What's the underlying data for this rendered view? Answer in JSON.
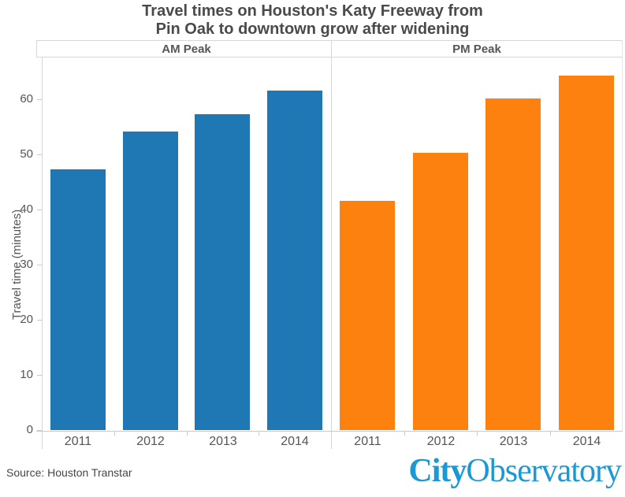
{
  "title": {
    "line1": "Travel times on Houston's Katy Freeway from",
    "line2": "Pin Oak to downtown grow after widening"
  },
  "chart_data": {
    "type": "bar",
    "title": "Travel times on Houston's Katy Freeway from Pin Oak to downtown grow after widening",
    "xlabel": "",
    "ylabel": "Travel time (minutes)",
    "categories": [
      "2011",
      "2012",
      "2013",
      "2014"
    ],
    "series": [
      {
        "name": "AM Peak",
        "color": "#1f77b4",
        "values": [
          47.3,
          54.1,
          57.3,
          61.6
        ]
      },
      {
        "name": "PM Peak",
        "color": "#fd810e",
        "values": [
          41.5,
          50.3,
          60.2,
          64.3
        ]
      }
    ],
    "ylim": [
      0,
      67.5
    ],
    "yticks": [
      0,
      10,
      20,
      30,
      40,
      50,
      60
    ],
    "grid": false,
    "legend": "none",
    "layout": "two side-by-side panels sharing one y-axis"
  },
  "footer": {
    "source": "Source: Houston Transtar",
    "logo_bold": "City",
    "logo_regular": "Observatory",
    "logo_color": "#1b99d5"
  }
}
